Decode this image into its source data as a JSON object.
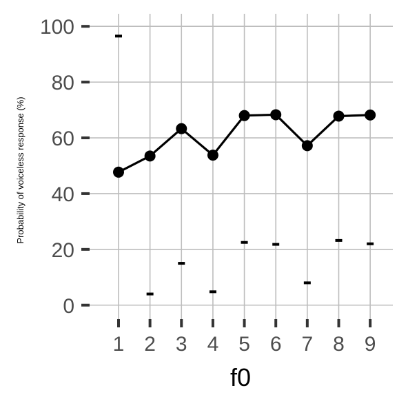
{
  "chart_data": {
    "type": "line",
    "title": "",
    "xlabel": "f0",
    "ylabel": "Probability of voiceless response (%)",
    "x": [
      1,
      2,
      3,
      4,
      5,
      6,
      7,
      8,
      9
    ],
    "xticks": [
      "1",
      "2",
      "3",
      "4",
      "5",
      "6",
      "7",
      "8",
      "9"
    ],
    "yticks": [
      "0",
      "20",
      "40",
      "60",
      "80",
      "100"
    ],
    "ytick_values": [
      0,
      20,
      40,
      60,
      80,
      100
    ],
    "ylim": [
      -5.5,
      104.5
    ],
    "xlim": [
      0.08,
      9.72
    ],
    "grid": true,
    "series": [
      {
        "values": [
          47.7,
          53.5,
          63.3,
          53.8,
          68.0,
          68.3,
          57.2,
          67.8,
          68.2
        ],
        "style": "line-with-points",
        "color": "#000000"
      },
      {
        "values": [
          96.5,
          4.0,
          15.0,
          4.8,
          22.5,
          21.8,
          8.0,
          23.2,
          22.0
        ],
        "style": "dash-marks",
        "color": "#000000"
      }
    ]
  }
}
